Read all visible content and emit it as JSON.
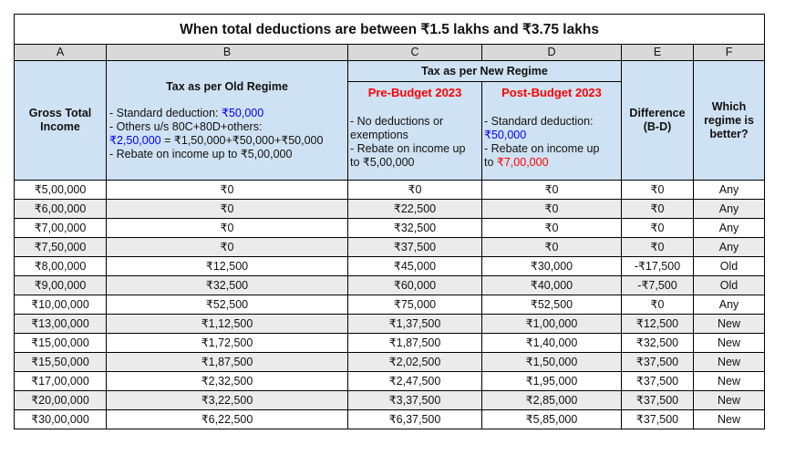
{
  "title": "When total deductions are between ₹1.5 lakhs and ₹3.75 lakhs",
  "column_letters": [
    "A",
    "B",
    "C",
    "D",
    "E",
    "F"
  ],
  "headers": {
    "gross_income": [
      "Gross Total",
      "Income"
    ],
    "old_regime": {
      "title": "Tax as per Old Regime",
      "line1_prefix": "- Standard deduction: ",
      "line1_value": "₹50,000",
      "line2": "- Others u/s 80C+80D+others:",
      "line3_value": "₹2,50,000",
      "line3_rest": " = ₹1,50,000+₹50,000+₹50,000",
      "line4": "- Rebate on income up to ₹5,00,000"
    },
    "new_regime": {
      "title": "Tax as per New Regime",
      "pre": {
        "title": "Pre-Budget 2023",
        "line1": "- No deductions or",
        "line2": "exemptions",
        "line3": "- Rebate on income up",
        "line4": "to ₹5,00,000"
      },
      "post": {
        "title": "Post-Budget 2023",
        "line1": "- Standard deduction:",
        "line2_value": "₹50,000",
        "line3": "- Rebate on income up",
        "line4_prefix": "to ",
        "line4_value": "₹7,00,000"
      }
    },
    "difference": [
      "Difference",
      "(B-D)"
    ],
    "better": [
      "Which",
      "regime is",
      "better?"
    ]
  },
  "rows": [
    [
      "₹5,00,000",
      "₹0",
      "₹0",
      "₹0",
      "₹0",
      "Any"
    ],
    [
      "₹6,00,000",
      "₹0",
      "₹22,500",
      "₹0",
      "₹0",
      "Any"
    ],
    [
      "₹7,00,000",
      "₹0",
      "₹32,500",
      "₹0",
      "₹0",
      "Any"
    ],
    [
      "₹7,50,000",
      "₹0",
      "₹37,500",
      "₹0",
      "₹0",
      "Any"
    ],
    [
      "₹8,00,000",
      "₹12,500",
      "₹45,000",
      "₹30,000",
      "-₹17,500",
      "Old"
    ],
    [
      "₹9,00,000",
      "₹32,500",
      "₹60,000",
      "₹40,000",
      "-₹7,500",
      "Old"
    ],
    [
      "₹10,00,000",
      "₹52,500",
      "₹75,000",
      "₹52,500",
      "₹0",
      "Any"
    ],
    [
      "₹13,00,000",
      "₹1,12,500",
      "₹1,37,500",
      "₹1,00,000",
      "₹12,500",
      "New"
    ],
    [
      "₹15,00,000",
      "₹1,72,500",
      "₹1,87,500",
      "₹1,40,000",
      "₹32,500",
      "New"
    ],
    [
      "₹15,50,000",
      "₹1,87,500",
      "₹2,02,500",
      "₹1,50,000",
      "₹37,500",
      "New"
    ],
    [
      "₹17,00,000",
      "₹2,32,500",
      "₹2,47,500",
      "₹1,95,000",
      "₹37,500",
      "New"
    ],
    [
      "₹20,00,000",
      "₹3,22,500",
      "₹3,37,500",
      "₹2,85,000",
      "₹37,500",
      "New"
    ],
    [
      "₹30,00,000",
      "₹6,22,500",
      "₹6,37,500",
      "₹5,85,000",
      "₹37,500",
      "New"
    ]
  ]
}
